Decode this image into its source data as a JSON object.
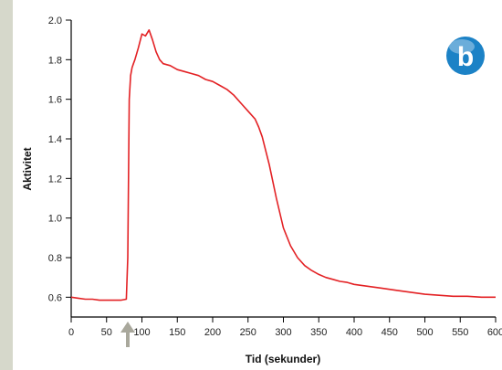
{
  "chart_data": {
    "type": "line",
    "title": "",
    "xlabel": "Tid (sekunder)",
    "ylabel": "Aktivitet",
    "xlim": [
      0,
      600
    ],
    "ylim": [
      0.5,
      2.0
    ],
    "x_ticks": [
      "0",
      "50",
      "100",
      "150",
      "200",
      "250",
      "300",
      "350",
      "400",
      "450",
      "500",
      "550",
      "600"
    ],
    "y_ticks": [
      "0.6",
      "0.8",
      "1.0",
      "1.2",
      "1.4",
      "1.6",
      "1.8",
      "2.0"
    ],
    "grid": false,
    "legend": "none",
    "badge_label": "b",
    "badge_color": "#1c82c6",
    "line_color": "#e32124",
    "marker_color": "#a9a89c",
    "marker_x": 80,
    "series": [
      {
        "x": [
          0,
          10,
          20,
          30,
          40,
          50,
          60,
          70,
          78,
          80,
          82,
          84,
          86,
          88,
          90,
          95,
          100,
          105,
          110,
          115,
          120,
          125,
          130,
          140,
          150,
          160,
          170,
          180,
          190,
          200,
          210,
          220,
          230,
          240,
          250,
          260,
          265,
          270,
          280,
          290,
          300,
          310,
          320,
          330,
          340,
          350,
          360,
          370,
          380,
          390,
          400,
          420,
          440,
          460,
          480,
          500,
          520,
          540,
          560,
          580,
          600
        ],
        "y": [
          0.6,
          0.595,
          0.59,
          0.59,
          0.585,
          0.585,
          0.585,
          0.585,
          0.59,
          0.8,
          1.6,
          1.72,
          1.76,
          1.78,
          1.8,
          1.86,
          1.93,
          1.92,
          1.95,
          1.9,
          1.84,
          1.8,
          1.78,
          1.77,
          1.75,
          1.74,
          1.73,
          1.72,
          1.7,
          1.69,
          1.67,
          1.65,
          1.62,
          1.58,
          1.54,
          1.5,
          1.46,
          1.41,
          1.27,
          1.1,
          0.95,
          0.86,
          0.8,
          0.76,
          0.735,
          0.715,
          0.7,
          0.69,
          0.68,
          0.675,
          0.665,
          0.655,
          0.645,
          0.635,
          0.625,
          0.615,
          0.61,
          0.605,
          0.605,
          0.6,
          0.6
        ]
      }
    ]
  }
}
